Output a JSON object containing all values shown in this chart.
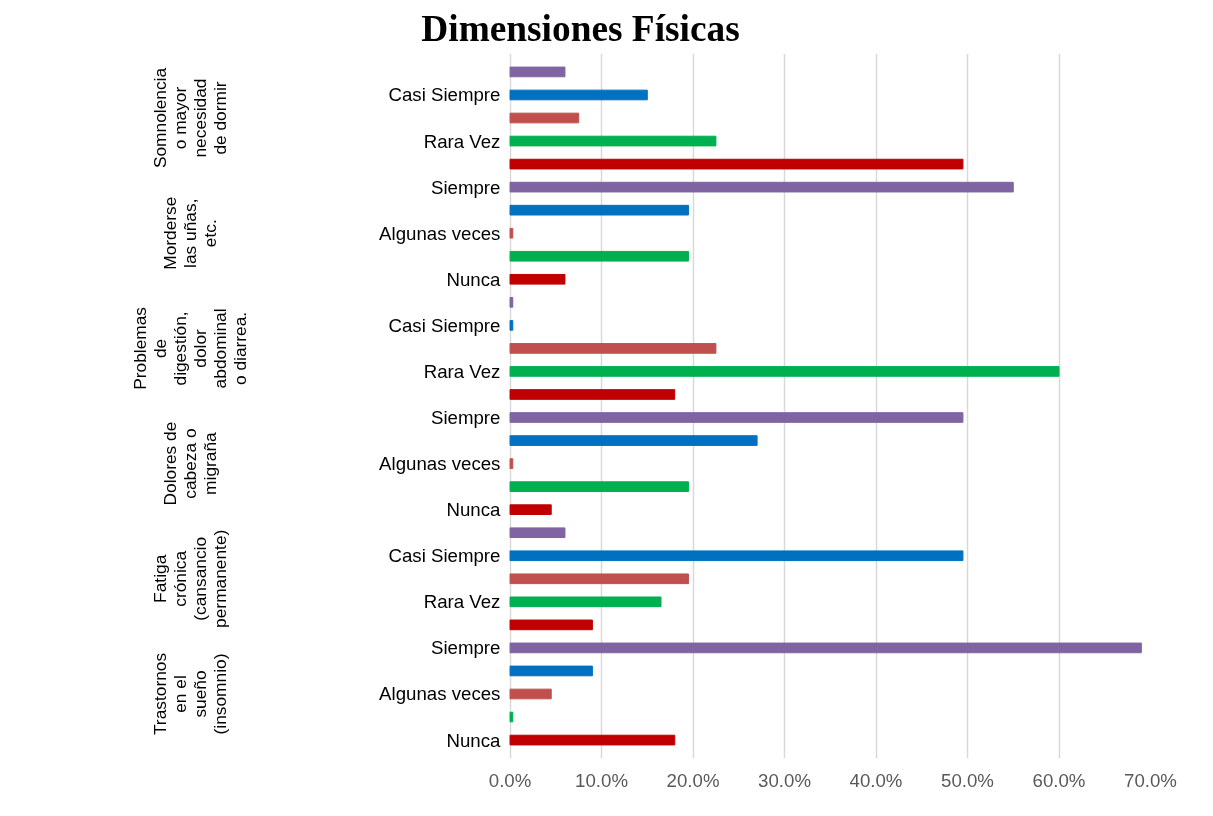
{
  "chart_data": {
    "type": "bar",
    "orientation": "horizontal",
    "title": "Dimensiones Físicas",
    "categories": [
      null,
      "Casi Siempre",
      null,
      "Rara Vez",
      null,
      "Siempre",
      null,
      "Algunas veces",
      null,
      "Nunca",
      null,
      "Casi Siempre",
      null,
      "Rara Vez",
      null,
      "Siempre",
      null,
      "Algunas veces",
      null,
      "Nunca",
      null,
      "Casi Siempre",
      null,
      "Rara Vez",
      null,
      "Siempre",
      null,
      "Algunas veces",
      null,
      "Nunca"
    ],
    "values": [
      6,
      15,
      7.5,
      22.5,
      49.5,
      55,
      19.5,
      0.3,
      19.5,
      6,
      0.3,
      0.3,
      22.5,
      60,
      18,
      49.5,
      27,
      0.3,
      19.5,
      4.5,
      6,
      49.5,
      19.5,
      16.5,
      9,
      69,
      9,
      4.5,
      0.3,
      18
    ],
    "colors": [
      "#8064a2",
      "#0070c0",
      "#c0504d",
      "#00b050",
      "#c00000",
      "#8064a2",
      "#0070c0",
      "#c0504d",
      "#00b050",
      "#c00000",
      "#8064a2",
      "#0070c0",
      "#c0504d",
      "#00b050",
      "#c00000",
      "#8064a2",
      "#0070c0",
      "#c0504d",
      "#00b050",
      "#c00000",
      "#8064a2",
      "#0070c0",
      "#c0504d",
      "#00b050",
      "#c00000",
      "#8064a2",
      "#0070c0",
      "#c0504d",
      "#00b050",
      "#c00000"
    ],
    "annotations": [
      "Somnolencia o mayor necesidad de dormir",
      "Morderse las uñas, etc.",
      "Problemas de digestión, dolor abdominal o diarrea.",
      "Dolores de cabeza o migraña",
      "Fatiga crónica (cansancio permanente)",
      "Trastornos en el sueño (insomnio)"
    ],
    "xlim": [
      0,
      70
    ],
    "xticks": [
      {
        "value": 0,
        "label": "0.0%"
      },
      {
        "value": 10,
        "label": "10.0%"
      },
      {
        "value": 20,
        "label": "20.0%"
      },
      {
        "value": 30,
        "label": "30.0%"
      },
      {
        "value": 40,
        "label": "40.0%"
      },
      {
        "value": 50,
        "label": "50.0%"
      },
      {
        "value": 60,
        "label": "60.0%"
      },
      {
        "value": 70,
        "label": "70.0%"
      }
    ],
    "grid": "x"
  }
}
